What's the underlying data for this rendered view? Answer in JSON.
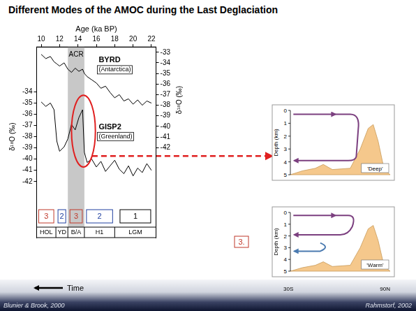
{
  "title": "Different Modes of the AMOC during the Last Deglaciation",
  "chart_data": {
    "type": "line",
    "x_title": "Age (ka BP)",
    "y_title": "δ¹⁸O (‰)",
    "y2_title": "δ¹⁸O (‰)",
    "x": [
      10,
      10.5,
      11,
      11.4,
      11.7,
      12,
      12.5,
      12.9,
      13.3,
      13.7,
      14.1,
      14.5,
      14.7,
      15,
      15.5,
      16,
      16.5,
      17,
      17.5,
      18,
      18.5,
      19,
      19.5,
      20,
      20.5,
      21,
      21.5,
      22
    ],
    "series": [
      {
        "name": "BYRD",
        "region": "(Antarctica)",
        "color": "#000000",
        "axis": "y2",
        "line_style": "solid",
        "values": [
          -33.2,
          -33.6,
          -33.4,
          -33.9,
          -34.1,
          -34.3,
          -34.0,
          -34.6,
          -34.9,
          -34.5,
          -34.8,
          -34.6,
          -35.0,
          -35.3,
          -35.6,
          -35.9,
          -36.4,
          -36.2,
          -36.8,
          -37.3,
          -37.0,
          -37.6,
          -37.4,
          -37.9,
          -37.5,
          -38.0,
          -37.6,
          -37.8
        ]
      },
      {
        "name": "GISP2",
        "region": "(Greenland)",
        "color": "#000000",
        "axis": "y",
        "line_style": "solid",
        "values": [
          -34.9,
          -35.3,
          -35.0,
          -35.6,
          -38.4,
          -39.3,
          -38.9,
          -38.2,
          -36.9,
          -37.4,
          -36.3,
          -35.6,
          -39.4,
          -40.3,
          -40.0,
          -40.7,
          -40.2,
          -41.1,
          -40.6,
          -40.1,
          -40.9,
          -41.3,
          -40.6,
          -41.5,
          -40.8,
          -41.2,
          -40.4,
          -41.0
        ]
      }
    ],
    "xlim": [
      9.5,
      22.5
    ],
    "xticks": [
      10,
      12,
      14,
      16,
      18,
      20,
      22
    ],
    "ylim": [
      -47,
      -30
    ],
    "yticks": [
      -34,
      -35,
      -36,
      -37,
      -38,
      -39,
      -40,
      -41,
      -42
    ],
    "y2lim": [
      -50.5,
      -32.5
    ],
    "y2ticks": [
      -33,
      -34,
      -35,
      -36,
      -37,
      -38,
      -39,
      -40,
      -41,
      -42
    ],
    "grid": false,
    "bands": [
      {
        "label": "ACR",
        "from": 12.9,
        "to": 14.7,
        "color": "#c8c8c8"
      }
    ],
    "periods": [
      {
        "label": "HOL",
        "from": 9.5,
        "to": 11.6,
        "mode": 3,
        "color": "#c0392b"
      },
      {
        "label": "YD",
        "from": 11.6,
        "to": 12.9,
        "mode": 2,
        "color": "#2040a0"
      },
      {
        "label": "B/A",
        "from": 12.9,
        "to": 14.7,
        "mode": 3,
        "color": "#c0392b"
      },
      {
        "label": "H1",
        "from": 14.7,
        "to": 18.0,
        "mode": 2,
        "color": "#2040a0"
      },
      {
        "label": "LGM",
        "from": 18.0,
        "to": 22.5,
        "mode": 1,
        "color": "#000000"
      }
    ],
    "highlight": {
      "x": [
        13.3,
        15.9
      ],
      "y": [
        -34.3,
        -40.7
      ],
      "color": "#e02020"
    }
  },
  "diagrams": [
    {
      "mode_name": "'Deep'",
      "y_title": "Depth (km)",
      "yticks": [
        0,
        1,
        2,
        3,
        4,
        5
      ]
    },
    {
      "mode_name": "'Warm'",
      "y_title": "Depth (km)",
      "yticks": [
        0,
        1,
        2,
        3,
        4,
        5
      ],
      "x_labels": [
        "30S",
        "90N"
      ],
      "marker": {
        "label": "3.",
        "color": "#c0392b"
      }
    }
  ],
  "time_arrow": "Time",
  "sources": [
    "Blunier & Brook, 2000",
    "Rahmstorf, 2002"
  ]
}
